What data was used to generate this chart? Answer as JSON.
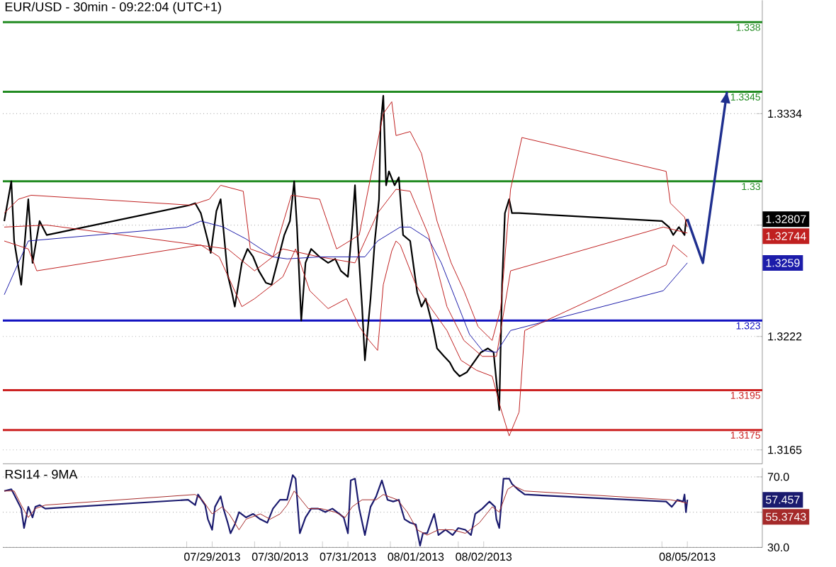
{
  "chart_data": [
    {
      "type": "line",
      "title": "EUR/USD - 30min - 09:22:04 (UTC+1)",
      "xlim": [
        "2013-07-26T07:00",
        "2013-08-06T11:30"
      ],
      "ylim": [
        1.3158,
        1.3391
      ],
      "yticks": [
        1.3165,
        1.3222,
        {
          "value": 1.3278,
          "label": null
        },
        1.3334
      ],
      "grid": "y",
      "marker": "none",
      "tick_labels": "y",
      "series": [
        {
          "color": "#000000",
          "x": [
            "2013-07-26T07:30",
            "2013-07-26T10:00",
            "2013-07-26T11:00",
            "2013-07-26T13:30",
            "2013-07-26T16:00",
            "2013-07-26T17:30",
            "2013-07-26T20:00",
            "2013-07-26T22:30",
            "2013-07-29T01:00",
            "2013-07-29T03:00",
            "2013-07-29T05:00",
            "2013-07-29T07:30",
            "2013-07-29T08:30",
            "2013-07-29T10:30",
            "2013-07-29T12:00",
            "2013-07-29T14:30",
            "2013-07-29T16:00",
            "2013-07-29T17:00",
            "2013-07-29T19:30",
            "2013-07-29T21:30",
            "2013-07-29T23:30",
            "2013-07-30T01:30",
            "2013-07-30T04:00",
            "2013-07-30T06:00",
            "2013-07-30T08:00",
            "2013-07-30T10:30",
            "2013-07-30T12:30",
            "2013-07-30T14:00",
            "2013-07-30T15:00",
            "2013-07-30T16:30",
            "2013-07-30T18:00",
            "2013-07-30T20:00",
            "2013-07-30T23:00",
            "2013-07-31T02:00",
            "2013-07-31T04:30",
            "2013-07-31T06:30",
            "2013-07-31T09:00",
            "2013-07-31T10:30",
            "2013-07-31T11:30",
            "2013-07-31T12:30",
            "2013-07-31T14:00",
            "2013-07-31T15:00",
            "2013-07-31T17:00",
            "2013-07-31T18:30",
            "2013-07-31T20:00",
            "2013-07-31T20:30",
            "2013-07-31T21:30",
            "2013-07-31T22:30",
            "2013-07-31T23:30",
            "2013-08-01T01:30",
            "2013-08-01T03:00",
            "2013-08-01T04:30",
            "2013-08-01T07:00",
            "2013-08-01T09:30",
            "2013-08-01T11:00",
            "2013-08-01T12:30",
            "2013-08-01T15:00",
            "2013-08-01T16:30",
            "2013-08-01T19:00",
            "2013-08-01T21:00",
            "2013-08-01T22:30",
            "2013-08-02T00:30",
            "2013-08-02T03:00",
            "2013-08-02T05:30",
            "2013-08-02T08:00",
            "2013-08-02T10:30",
            "2013-08-02T12:30",
            "2013-08-02T14:30",
            "2013-08-02T15:30",
            "2013-08-02T16:30",
            "2013-08-02T18:00",
            "2013-08-02T19:00",
            "2013-08-02T21:30",
            "2013-08-05T00:00",
            "2013-08-05T02:30",
            "2013-08-05T04:00",
            "2013-08-05T06:00",
            "2013-08-05T08:00",
            "2013-08-05T08:30",
            "2013-08-05T09:00"
          ],
          "values": [
            1.328,
            1.33,
            1.327,
            1.3248,
            1.3291,
            1.3259,
            1.328,
            1.3273,
            1.3288,
            1.3289,
            1.3284,
            1.327,
            1.3264,
            1.3285,
            1.3291,
            1.3253,
            1.3244,
            1.3237,
            1.3259,
            1.3266,
            1.3262,
            1.3255,
            1.3249,
            1.3248,
            1.3259,
            1.3273,
            1.328,
            1.33,
            1.3277,
            1.323,
            1.3259,
            1.3266,
            1.3262,
            1.3259,
            1.3261,
            1.3255,
            1.3252,
            1.3277,
            1.3298,
            1.327,
            1.3237,
            1.321,
            1.3241,
            1.327,
            1.3291,
            1.3327,
            1.3343,
            1.3298,
            1.3305,
            1.3298,
            1.3302,
            1.3273,
            1.327,
            1.3244,
            1.3237,
            1.3241,
            1.3227,
            1.3216,
            1.3212,
            1.3209,
            1.3205,
            1.3202,
            1.3204,
            1.3209,
            1.3214,
            1.3216,
            1.3214,
            1.3185,
            1.3248,
            1.3284,
            1.3291,
            1.3284,
            1.3284,
            1.328,
            1.3277,
            1.3273,
            1.3277,
            1.3273,
            1.328,
            1.3281
          ]
        },
        {
          "color": "#c02020",
          "x": [
            "2013-07-26T07:30",
            "2013-07-26T22:30",
            "2013-07-29T14:30",
            "2013-07-30T00:00",
            "2013-07-30T10:00",
            "2013-07-30T23:00",
            "2013-07-31T11:30",
            "2013-07-31T19:30",
            "2013-08-01T02:00",
            "2013-08-01T07:00",
            "2013-08-01T13:30",
            "2013-08-01T20:00",
            "2013-08-02T02:00",
            "2013-08-02T08:30",
            "2013-08-02T13:30",
            "2013-08-02T18:30",
            "2013-08-05T00:30",
            "2013-08-05T09:00"
          ],
          "values": [
            1.3277,
            1.3278,
            1.3266,
            1.3255,
            1.3266,
            1.3262,
            1.3259,
            1.3284,
            1.3296,
            1.3295,
            1.3273,
            1.3237,
            1.322,
            1.3212,
            1.3212,
            1.3255,
            1.3277,
            1.3274
          ]
        },
        {
          "color": "#1c1caa",
          "x": [
            "2013-07-26T07:30",
            "2013-07-26T12:30",
            "2013-07-26T16:00",
            "2013-07-29T00:00",
            "2013-07-29T05:00",
            "2013-07-29T13:00",
            "2013-07-29T21:00",
            "2013-07-30T06:30",
            "2013-07-30T11:30",
            "2013-07-30T23:00",
            "2013-07-31T08:30",
            "2013-07-31T15:00",
            "2013-07-31T19:30",
            "2013-08-01T03:30",
            "2013-08-01T07:00",
            "2013-08-01T13:30",
            "2013-08-01T18:00",
            "2013-08-01T23:00",
            "2013-08-02T04:00",
            "2013-08-02T08:30",
            "2013-08-02T13:30",
            "2013-08-02T18:30",
            "2013-08-05T00:30",
            "2013-08-05T09:00"
          ],
          "values": [
            1.3243,
            1.3259,
            1.327,
            1.3277,
            1.328,
            1.3277,
            1.3271,
            1.3262,
            1.3261,
            1.3262,
            1.3262,
            1.3262,
            1.327,
            1.3277,
            1.3277,
            1.3271,
            1.3259,
            1.3241,
            1.3223,
            1.3215,
            1.3214,
            1.3225,
            1.3245,
            1.3259
          ]
        },
        {
          "color": "#c02020",
          "x": [
            "2013-07-26T07:30",
            "2013-07-26T12:30",
            "2013-07-26T17:00",
            "2013-07-29T01:30",
            "2013-07-29T08:00",
            "2013-07-29T12:00",
            "2013-07-29T20:00",
            "2013-07-29T22:30",
            "2013-07-30T06:30",
            "2013-07-30T13:00",
            "2013-07-30T23:00",
            "2013-07-31T05:00",
            "2013-07-31T13:00",
            "2013-07-31T18:00",
            "2013-07-31T21:30",
            "2013-08-01T00:30",
            "2013-08-01T02:00",
            "2013-08-01T07:00",
            "2013-08-01T11:00",
            "2013-08-01T16:30",
            "2013-08-01T21:30",
            "2013-08-02T02:00",
            "2013-08-02T07:00",
            "2013-08-02T12:00",
            "2013-08-02T15:00",
            "2013-08-02T18:30",
            "2013-08-02T22:30",
            "2013-08-05T01:30",
            "2013-08-05T03:00",
            "2013-08-05T08:00",
            "2013-08-05T09:00"
          ],
          "values": [
            1.3284,
            1.3291,
            1.3293,
            1.3288,
            1.3291,
            1.3298,
            1.3295,
            1.3266,
            1.3262,
            1.3293,
            1.3291,
            1.3266,
            1.3273,
            1.3309,
            1.3334,
            1.334,
            1.3323,
            1.3325,
            1.3314,
            1.328,
            1.3259,
            1.3245,
            1.3227,
            1.322,
            1.3236,
            1.3296,
            1.3322,
            1.3305,
            1.3289,
            1.3282,
            1.3277
          ]
        },
        {
          "color": "#c02020",
          "x": [
            "2013-07-26T07:30",
            "2013-07-26T16:00",
            "2013-07-26T19:00",
            "2013-07-29T05:00",
            "2013-07-29T11:30",
            "2013-07-29T19:30",
            "2013-07-30T00:00",
            "2013-07-30T10:00",
            "2013-07-30T14:30",
            "2013-07-30T19:30",
            "2013-07-31T02:00",
            "2013-07-31T08:30",
            "2013-07-31T13:00",
            "2013-07-31T16:30",
            "2013-07-31T19:30",
            "2013-07-31T21:30",
            "2013-08-01T00:30",
            "2013-08-01T02:00",
            "2013-08-01T03:30",
            "2013-08-01T09:00",
            "2013-08-01T14:30",
            "2013-08-01T20:00",
            "2013-08-02T01:00",
            "2013-08-02T06:30",
            "2013-08-02T12:00",
            "2013-08-02T15:00",
            "2013-08-02T18:00",
            "2013-08-02T21:30",
            "2013-08-02T23:30",
            "2013-08-05T01:30",
            "2013-08-05T04:00",
            "2013-08-05T09:00"
          ],
          "values": [
            1.327,
            1.3266,
            1.3255,
            1.3268,
            1.3262,
            1.3237,
            1.3241,
            1.3252,
            1.3266,
            1.3245,
            1.3236,
            1.3241,
            1.3227,
            1.322,
            1.3215,
            1.3248,
            1.3265,
            1.327,
            1.3268,
            1.3248,
            1.3236,
            1.3225,
            1.321,
            1.3205,
            1.3202,
            1.3186,
            1.3172,
            1.3184,
            1.3225,
            1.3258,
            1.3268,
            1.3262
          ]
        },
        {
          "type": "line",
          "color": "#1f2f8f",
          "x": [
            "2013-08-05T09:00",
            "2013-08-05T14:30",
            "2013-08-05T23:00"
          ],
          "values": [
            1.3281,
            1.3259,
            1.3345
          ]
        }
      ],
      "ref_lines": [
        {
          "axis": "y",
          "value": 1.338,
          "label": "1.338",
          "color": "#228b22"
        },
        {
          "axis": "y",
          "value": 1.3345,
          "label": "1.3345",
          "color": "#228b22"
        },
        {
          "axis": "y",
          "value": 1.33,
          "label": "1.33",
          "color": "#228b22"
        },
        {
          "axis": "y",
          "value": 1.323,
          "label": "1.323",
          "color": "#1010c0"
        },
        {
          "axis": "y",
          "value": 1.3195,
          "label": "1.3195",
          "color": "#cc2222"
        },
        {
          "axis": "y",
          "value": 1.3175,
          "label": "1.3175",
          "color": "#cc2222"
        }
      ],
      "annotations": [
        "1.32807",
        "1.32744",
        "1.3259"
      ]
    },
    {
      "type": "line",
      "title": "RSI14 - 9MA",
      "xlim": [
        "2013-07-26T07:00",
        "2013-08-06T11:30"
      ],
      "ylim": [
        30,
        75
      ],
      "xticks": [
        {
          "value": "2013-07-29",
          "label": null
        },
        {
          "value": "2013-07-29T09:00",
          "label": "07/29/2013"
        },
        {
          "value": "2013-07-30",
          "label": null
        },
        {
          "value": "2013-07-30T09:00",
          "label": "07/30/2013"
        },
        {
          "value": "2013-07-31",
          "label": null
        },
        {
          "value": "2013-07-31T09:00",
          "label": "07/31/2013"
        },
        {
          "value": "2013-08-01",
          "label": null
        },
        {
          "value": "2013-08-01T09:00",
          "label": "08/01/2013"
        },
        {
          "value": "2013-08-02",
          "label": null
        },
        {
          "value": "2013-08-02T09:00",
          "label": "08/02/2013"
        },
        {
          "value": "2013-08-05",
          "label": null
        },
        {
          "value": "2013-08-05T09:00",
          "label": "08/05/2013"
        }
      ],
      "yticks": [
        {
          "value": 30,
          "label": "30.0"
        },
        {
          "value": 50,
          "label": null
        },
        {
          "value": 70,
          "label": "70.0"
        }
      ],
      "grid": "y",
      "marker": "none",
      "series": [
        {
          "color": "#1a1a6e",
          "x": [
            "2013-07-26T07:30",
            "2013-07-26T10:00",
            "2013-07-26T11:00",
            "2013-07-26T13:30",
            "2013-07-26T14:30",
            "2013-07-26T16:00",
            "2013-07-26T17:30",
            "2013-07-26T18:30",
            "2013-07-26T20:00",
            "2013-07-26T22:00",
            "2013-07-29T00:30",
            "2013-07-29T03:00",
            "2013-07-29T04:00",
            "2013-07-29T06:30",
            "2013-07-29T07:30",
            "2013-07-29T09:00",
            "2013-07-29T10:00",
            "2013-07-29T12:00",
            "2013-07-29T13:00",
            "2013-07-29T14:30",
            "2013-07-29T15:30",
            "2013-07-29T17:00",
            "2013-07-29T18:30",
            "2013-07-29T21:00",
            "2013-07-29T23:30",
            "2013-07-30T02:00",
            "2013-07-30T04:30",
            "2013-07-30T06:30",
            "2013-07-30T09:00",
            "2013-07-30T11:30",
            "2013-07-30T13:30",
            "2013-07-30T14:30",
            "2013-07-30T16:00",
            "2013-07-30T18:00",
            "2013-07-30T20:00",
            "2013-07-30T22:30",
            "2013-07-31T01:00",
            "2013-07-31T03:30",
            "2013-07-31T06:00",
            "2013-07-31T07:30",
            "2013-07-31T09:00",
            "2013-07-31T10:00",
            "2013-07-31T11:30",
            "2013-07-31T13:00",
            "2013-07-31T15:00",
            "2013-07-31T17:00",
            "2013-07-31T19:00",
            "2013-07-31T21:00",
            "2013-07-31T23:00",
            "2013-08-01T01:00",
            "2013-08-01T03:00",
            "2013-08-01T05:00",
            "2013-08-01T07:00",
            "2013-08-01T09:00",
            "2013-08-01T10:30",
            "2013-08-01T11:30",
            "2013-08-01T13:00",
            "2013-08-01T15:30",
            "2013-08-01T17:00",
            "2013-08-01T19:30",
            "2013-08-01T22:00",
            "2013-08-02T00:00",
            "2013-08-02T02:30",
            "2013-08-02T04:30",
            "2013-08-02T06:00",
            "2013-08-02T08:30",
            "2013-08-02T11:00",
            "2013-08-02T13:00",
            "2013-08-02T13:30",
            "2013-08-02T14:30",
            "2013-08-02T16:00",
            "2013-08-02T18:00",
            "2013-08-02T19:00",
            "2013-08-02T21:00",
            "2013-08-02T23:30",
            "2013-08-05T01:30",
            "2013-08-05T03:30",
            "2013-08-05T05:30",
            "2013-08-05T07:30",
            "2013-08-05T08:00",
            "2013-08-05T08:30",
            "2013-08-05T09:00"
          ],
          "values": [
            62,
            63,
            60,
            52,
            41,
            53,
            47,
            53,
            54,
            52,
            57,
            54,
            60,
            54,
            46,
            40,
            53,
            59,
            52,
            44,
            38,
            43,
            50,
            47,
            49,
            46,
            44,
            52,
            57,
            57,
            71,
            69,
            38,
            47,
            52,
            52,
            50,
            52,
            49,
            47,
            38,
            68,
            69,
            52,
            37,
            53,
            59,
            68,
            57,
            56,
            57,
            46,
            44,
            43,
            31,
            38,
            38,
            49,
            37,
            40,
            37,
            41,
            40,
            37,
            49,
            52,
            56,
            53,
            46,
            41,
            69,
            69,
            66,
            63,
            60,
            56,
            53,
            57,
            56,
            60,
            50,
            57
          ]
        },
        {
          "color": "#a52a2a",
          "x": [
            "2013-07-26T07:30",
            "2013-07-26T11:00",
            "2013-07-26T13:30",
            "2013-07-26T16:00",
            "2013-07-26T18:30",
            "2013-07-26T22:00",
            "2013-07-29T03:00",
            "2013-07-29T05:30",
            "2013-07-29T09:00",
            "2013-07-29T12:30",
            "2013-07-29T15:00",
            "2013-07-29T18:30",
            "2013-07-29T21:00",
            "2013-07-30T02:00",
            "2013-07-30T05:30",
            "2013-07-30T09:00",
            "2013-07-30T11:30",
            "2013-07-30T14:00",
            "2013-07-30T16:30",
            "2013-07-30T19:00",
            "2013-07-30T23:30",
            "2013-07-31T04:30",
            "2013-07-31T08:00",
            "2013-07-31T10:30",
            "2013-07-31T14:00",
            "2013-07-31T19:00",
            "2013-07-31T21:30",
            "2013-08-01T02:30",
            "2013-08-01T06:00",
            "2013-08-01T09:30",
            "2013-08-01T13:00",
            "2013-08-01T17:00",
            "2013-08-01T22:00",
            "2013-08-02T02:30",
            "2013-08-02T07:30",
            "2013-08-02T12:00",
            "2013-08-02T14:30",
            "2013-08-02T17:30",
            "2013-08-02T19:30",
            "2013-08-02T23:30",
            "2013-08-05T03:00",
            "2013-08-05T06:30",
            "2013-08-05T09:00"
          ],
          "values": [
            62,
            62,
            54,
            47,
            52,
            54,
            60,
            57,
            49,
            53,
            49,
            40,
            46,
            49,
            46,
            49,
            54,
            62,
            57,
            52,
            52,
            50,
            47,
            53,
            57,
            57,
            60,
            57,
            50,
            40,
            37,
            40,
            40,
            38,
            44,
            53,
            50,
            63,
            65,
            62,
            57,
            56,
            55
          ]
        }
      ],
      "annotations": [
        "57.457",
        "55.3743"
      ]
    }
  ]
}
